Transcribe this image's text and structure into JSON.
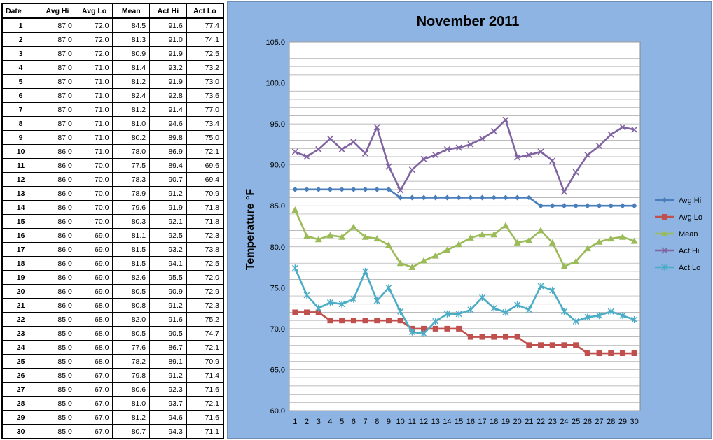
{
  "table": {
    "headers": [
      "Date",
      "Avg Hi",
      "Avg Lo",
      "Mean",
      "Act Hi",
      "Act Lo"
    ],
    "rows": [
      [
        "1",
        "87.0",
        "72.0",
        "84.5",
        "91.6",
        "77.4"
      ],
      [
        "2",
        "87.0",
        "72.0",
        "81.3",
        "91.0",
        "74.1"
      ],
      [
        "3",
        "87.0",
        "72.0",
        "80.9",
        "91.9",
        "72.5"
      ],
      [
        "4",
        "87.0",
        "71.0",
        "81.4",
        "93.2",
        "73.2"
      ],
      [
        "5",
        "87.0",
        "71.0",
        "81.2",
        "91.9",
        "73.0"
      ],
      [
        "6",
        "87.0",
        "71.0",
        "82.4",
        "92.8",
        "73.6"
      ],
      [
        "7",
        "87.0",
        "71.0",
        "81.2",
        "91.4",
        "77.0"
      ],
      [
        "8",
        "87.0",
        "71.0",
        "81.0",
        "94.6",
        "73.4"
      ],
      [
        "9",
        "87.0",
        "71.0",
        "80.2",
        "89.8",
        "75.0"
      ],
      [
        "10",
        "86.0",
        "71.0",
        "78.0",
        "86.9",
        "72.1"
      ],
      [
        "11",
        "86.0",
        "70.0",
        "77.5",
        "89.4",
        "69.6"
      ],
      [
        "12",
        "86.0",
        "70.0",
        "78.3",
        "90.7",
        "69.4"
      ],
      [
        "13",
        "86.0",
        "70.0",
        "78.9",
        "91.2",
        "70.9"
      ],
      [
        "14",
        "86.0",
        "70.0",
        "79.6",
        "91.9",
        "71.8"
      ],
      [
        "15",
        "86.0",
        "70.0",
        "80.3",
        "92.1",
        "71.8"
      ],
      [
        "16",
        "86.0",
        "69.0",
        "81.1",
        "92.5",
        "72.3"
      ],
      [
        "17",
        "86.0",
        "69.0",
        "81.5",
        "93.2",
        "73.8"
      ],
      [
        "18",
        "86.0",
        "69.0",
        "81.5",
        "94.1",
        "72.5"
      ],
      [
        "19",
        "86.0",
        "69.0",
        "82.6",
        "95.5",
        "72.0"
      ],
      [
        "20",
        "86.0",
        "69.0",
        "80.5",
        "90.9",
        "72.9"
      ],
      [
        "21",
        "86.0",
        "68.0",
        "80.8",
        "91.2",
        "72.3"
      ],
      [
        "22",
        "85.0",
        "68.0",
        "82.0",
        "91.6",
        "75.2"
      ],
      [
        "23",
        "85.0",
        "68.0",
        "80.5",
        "90.5",
        "74.7"
      ],
      [
        "24",
        "85.0",
        "68.0",
        "77.6",
        "86.7",
        "72.1"
      ],
      [
        "25",
        "85.0",
        "68.0",
        "78.2",
        "89.1",
        "70.9"
      ],
      [
        "26",
        "85.0",
        "67.0",
        "79.8",
        "91.2",
        "71.4"
      ],
      [
        "27",
        "85.0",
        "67.0",
        "80.6",
        "92.3",
        "71.6"
      ],
      [
        "28",
        "85.0",
        "67.0",
        "81.0",
        "93.7",
        "72.1"
      ],
      [
        "29",
        "85.0",
        "67.0",
        "81.2",
        "94.6",
        "71.6"
      ],
      [
        "30",
        "85.0",
        "67.0",
        "80.7",
        "94.3",
        "71.1"
      ]
    ]
  },
  "chart_data": {
    "type": "line",
    "title": "November 2011",
    "xlabel": "",
    "ylabel": "Temperature °F",
    "x": [
      1,
      2,
      3,
      4,
      5,
      6,
      7,
      8,
      9,
      10,
      11,
      12,
      13,
      14,
      15,
      16,
      17,
      18,
      19,
      20,
      21,
      22,
      23,
      24,
      25,
      26,
      27,
      28,
      29,
      30
    ],
    "ylim": [
      60,
      105
    ],
    "yticks": [
      "60.0",
      "65.0",
      "70.0",
      "75.0",
      "80.0",
      "85.0",
      "90.0",
      "95.0",
      "100.0",
      "105.0"
    ],
    "grid": true,
    "legend_position": "right",
    "series": [
      {
        "name": "Avg Hi",
        "color": "#4a7ebb",
        "marker": "diamond",
        "values": [
          87,
          87,
          87,
          87,
          87,
          87,
          87,
          87,
          87,
          86,
          86,
          86,
          86,
          86,
          86,
          86,
          86,
          86,
          86,
          86,
          86,
          85,
          85,
          85,
          85,
          85,
          85,
          85,
          85,
          85
        ]
      },
      {
        "name": "Avg Lo",
        "color": "#c0504d",
        "marker": "square",
        "values": [
          72,
          72,
          72,
          71,
          71,
          71,
          71,
          71,
          71,
          71,
          70,
          70,
          70,
          70,
          70,
          69,
          69,
          69,
          69,
          69,
          68,
          68,
          68,
          68,
          68,
          67,
          67,
          67,
          67,
          67
        ]
      },
      {
        "name": "Mean",
        "color": "#9bbb59",
        "marker": "triangle",
        "values": [
          84.5,
          81.3,
          80.9,
          81.4,
          81.2,
          82.4,
          81.2,
          81.0,
          80.2,
          78.0,
          77.5,
          78.3,
          78.9,
          79.6,
          80.3,
          81.1,
          81.5,
          81.5,
          82.6,
          80.5,
          80.8,
          82.0,
          80.5,
          77.6,
          78.2,
          79.8,
          80.6,
          81.0,
          81.2,
          80.7
        ]
      },
      {
        "name": "Act Hi",
        "color": "#8064a2",
        "marker": "x",
        "values": [
          91.6,
          91.0,
          91.9,
          93.2,
          91.9,
          92.8,
          91.4,
          94.6,
          89.8,
          86.9,
          89.4,
          90.7,
          91.2,
          91.9,
          92.1,
          92.5,
          93.2,
          94.1,
          95.5,
          90.9,
          91.2,
          91.6,
          90.5,
          86.7,
          89.1,
          91.2,
          92.3,
          93.7,
          94.6,
          94.3
        ]
      },
      {
        "name": "Act Lo",
        "color": "#4bacc6",
        "marker": "star",
        "values": [
          77.4,
          74.1,
          72.5,
          73.2,
          73.0,
          73.6,
          77.0,
          73.4,
          75.0,
          72.1,
          69.6,
          69.4,
          70.9,
          71.8,
          71.8,
          72.3,
          73.8,
          72.5,
          72.0,
          72.9,
          72.3,
          75.2,
          74.7,
          72.1,
          70.9,
          71.4,
          71.6,
          72.1,
          71.6,
          71.1
        ]
      }
    ]
  }
}
